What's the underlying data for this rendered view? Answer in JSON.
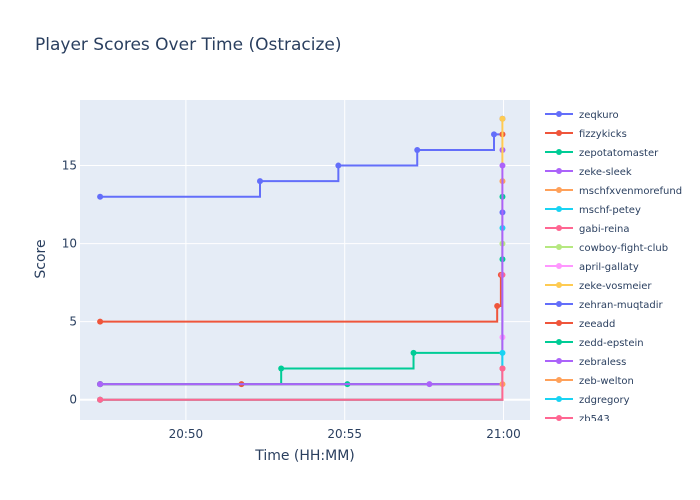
{
  "chart_data": {
    "type": "line",
    "line_shape": "step",
    "title": "Player Scores Over Time (Ostracize)",
    "xlabel": "Time (HH:MM)",
    "ylabel": "Score",
    "x_ticks": [
      "20:50",
      "20:55",
      "21:00"
    ],
    "x_tick_values": [
      "20:50",
      "20:55",
      "21:00"
    ],
    "xlim": [
      "20:46:40",
      "21:00:50"
    ],
    "y_ticks": [
      0,
      5,
      10,
      15
    ],
    "ylim": [
      -1.3,
      19.2
    ],
    "grid": true,
    "legend_position": "right",
    "series": [
      {
        "name": "zeqkuro",
        "color": "#636efa",
        "points": [
          [
            "20:47:18",
            13
          ],
          [
            "20:52:20",
            14
          ],
          [
            "20:54:48",
            15
          ],
          [
            "20:57:17",
            16
          ],
          [
            "20:59:42",
            17
          ],
          [
            "20:59:58",
            18
          ]
        ]
      },
      {
        "name": "fizzykicks",
        "color": "#EF553B",
        "points": [
          [
            "20:47:18",
            5
          ],
          [
            "20:59:48",
            6
          ],
          [
            "20:59:55",
            8
          ],
          [
            "20:59:58",
            17
          ]
        ]
      },
      {
        "name": "zepotatomaster",
        "color": "#00cc96",
        "points": [
          [
            "20:47:18",
            1
          ],
          [
            "20:53:00",
            2
          ],
          [
            "20:57:10",
            3
          ],
          [
            "20:59:58",
            13
          ]
        ]
      },
      {
        "name": "zeke-sleek",
        "color": "#ab63fa",
        "points": [
          [
            "20:47:18",
            1
          ],
          [
            "20:59:58",
            16
          ]
        ]
      },
      {
        "name": "mschfxvenmorefund",
        "color": "#FFA15A",
        "points": [
          [
            "20:47:18",
            0
          ],
          [
            "20:59:58",
            14
          ]
        ]
      },
      {
        "name": "mschf-petey",
        "color": "#19d3f3",
        "points": [
          [
            "20:47:18",
            0
          ],
          [
            "20:59:58",
            11
          ]
        ]
      },
      {
        "name": "gabi-reina",
        "color": "#FF6692",
        "points": [
          [
            "20:47:18",
            0
          ],
          [
            "20:59:58",
            8
          ]
        ]
      },
      {
        "name": "cowboy-fight-club",
        "color": "#B6E880",
        "points": [
          [
            "20:47:18",
            1
          ],
          [
            "20:59:58",
            10
          ]
        ]
      },
      {
        "name": "april-gallaty",
        "color": "#FF97FF",
        "points": [
          [
            "20:47:18",
            1
          ],
          [
            "20:59:58",
            4
          ]
        ]
      },
      {
        "name": "zeke-vosmeier",
        "color": "#FECB52",
        "points": [
          [
            "20:47:18",
            0
          ],
          [
            "20:59:58",
            18
          ]
        ]
      },
      {
        "name": "zehran-muqtadir",
        "color": "#636efa",
        "points": [
          [
            "20:47:18",
            1
          ],
          [
            "20:59:58",
            12
          ]
        ]
      },
      {
        "name": "zeeadd",
        "color": "#EF553B",
        "points": [
          [
            "20:47:18",
            1
          ],
          [
            "20:51:45",
            1
          ],
          [
            "20:59:58",
            2
          ]
        ]
      },
      {
        "name": "zedd-epstein",
        "color": "#00cc96",
        "points": [
          [
            "20:47:18",
            1
          ],
          [
            "20:55:05",
            1
          ],
          [
            "20:59:58",
            9
          ]
        ]
      },
      {
        "name": "zebraless",
        "color": "#ab63fa",
        "points": [
          [
            "20:47:18",
            1
          ],
          [
            "20:57:40",
            1
          ],
          [
            "20:59:58",
            15
          ]
        ]
      },
      {
        "name": "zeb-welton",
        "color": "#FFA15A",
        "points": [
          [
            "20:47:18",
            0
          ],
          [
            "20:59:58",
            1
          ]
        ]
      },
      {
        "name": "zdgregory",
        "color": "#19d3f3",
        "points": [
          [
            "20:47:18",
            0
          ],
          [
            "20:59:58",
            3
          ]
        ]
      },
      {
        "name": "zb543",
        "color": "#FF6692",
        "points": [
          [
            "20:47:18",
            0
          ],
          [
            "20:59:58",
            2
          ]
        ]
      }
    ]
  }
}
